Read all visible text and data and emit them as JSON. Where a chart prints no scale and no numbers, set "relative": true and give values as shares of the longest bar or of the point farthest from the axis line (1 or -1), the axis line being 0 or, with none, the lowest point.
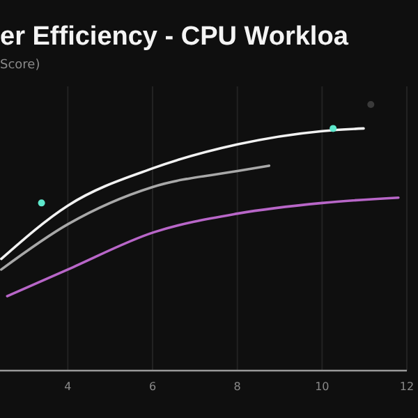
{
  "chart_data": {
    "type": "line",
    "title": "er Efficiency - CPU Workloa",
    "subtitle": "Score)",
    "relative": true,
    "xlim": [
      2.4,
      12
    ],
    "xticks": [
      4,
      6,
      8,
      10,
      12
    ],
    "tick_labels": "x",
    "grid": "x",
    "series": [
      {
        "color": "#f2f2f2",
        "x": [
          2.43,
          4,
          6,
          8,
          10,
          10.98
        ],
        "values": [
          0.42,
          0.62,
          0.76,
          0.85,
          0.9,
          0.91
        ]
      },
      {
        "color": "#a8a8a8",
        "x": [
          2.43,
          4,
          6,
          8,
          8.75
        ],
        "values": [
          0.38,
          0.55,
          0.69,
          0.75,
          0.77
        ]
      },
      {
        "color": "#b866c8",
        "x": [
          2.57,
          4,
          6.03,
          8,
          10,
          11.8
        ],
        "values": [
          0.28,
          0.38,
          0.52,
          0.59,
          0.63,
          0.65
        ]
      },
      {
        "type": "scatter",
        "marker": "circle",
        "color": "#5ee8cc",
        "x": [
          3.38,
          10.26
        ],
        "values": [
          0.63,
          0.91
        ]
      },
      {
        "type": "scatter",
        "marker": "circle",
        "color": "#3a3a3a",
        "x": [
          11.15
        ],
        "values": [
          1.0
        ]
      }
    ]
  }
}
